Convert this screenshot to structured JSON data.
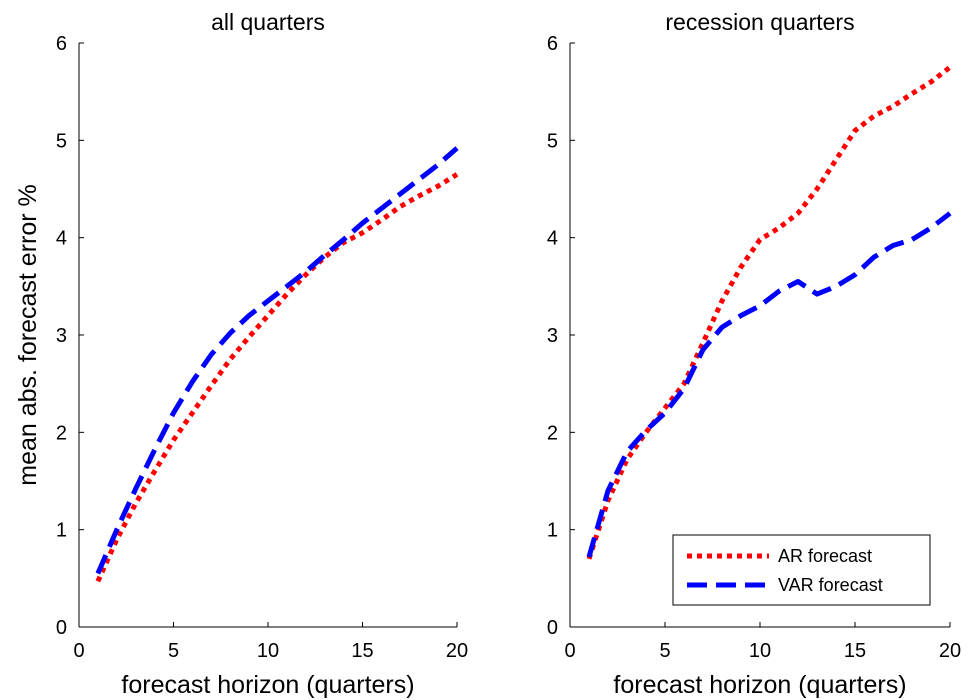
{
  "chart_data": [
    {
      "type": "line",
      "title": "all quarters",
      "xlabel": "forecast horizon (quarters)",
      "ylabel": "mean abs. forecast error %",
      "xlim": [
        0,
        20
      ],
      "ylim": [
        0,
        6
      ],
      "xticks": [
        0,
        5,
        10,
        15,
        20
      ],
      "yticks": [
        0,
        1,
        2,
        3,
        4,
        5,
        6
      ],
      "grid": false,
      "series": [
        {
          "name": "AR forecast",
          "color": "#ff0000",
          "style": "dotted",
          "x": [
            1,
            2,
            3,
            4,
            5,
            6,
            7,
            8,
            9,
            10,
            11,
            12,
            13,
            14,
            15,
            16,
            17,
            18,
            19,
            20
          ],
          "y": [
            0.47,
            0.9,
            1.27,
            1.6,
            1.92,
            2.2,
            2.48,
            2.75,
            2.98,
            3.2,
            3.42,
            3.62,
            3.8,
            3.95,
            4.05,
            4.18,
            4.32,
            4.43,
            4.53,
            4.65
          ]
        },
        {
          "name": "VAR forecast",
          "color": "#0000ff",
          "style": "dashed",
          "x": [
            1,
            2,
            3,
            4,
            5,
            6,
            7,
            8,
            9,
            10,
            11,
            12,
            13,
            14,
            15,
            16,
            17,
            18,
            19,
            20
          ],
          "y": [
            0.55,
            1.0,
            1.42,
            1.82,
            2.2,
            2.52,
            2.8,
            3.02,
            3.2,
            3.35,
            3.5,
            3.65,
            3.82,
            3.98,
            4.15,
            4.3,
            4.45,
            4.6,
            4.75,
            4.92
          ]
        }
      ]
    },
    {
      "type": "line",
      "title": "recession quarters",
      "xlabel": "forecast horizon (quarters)",
      "ylabel": "",
      "xlim": [
        0,
        20
      ],
      "ylim": [
        0,
        6
      ],
      "xticks": [
        0,
        5,
        10,
        15,
        20
      ],
      "yticks": [
        0,
        1,
        2,
        3,
        4,
        5,
        6
      ],
      "grid": false,
      "legend": {
        "position": "bottom-right",
        "entries": [
          "AR forecast",
          "VAR forecast"
        ]
      },
      "series": [
        {
          "name": "AR forecast",
          "color": "#ff0000",
          "style": "dotted",
          "x": [
            1,
            2,
            3,
            4,
            5,
            6,
            7,
            8,
            9,
            10,
            11,
            12,
            13,
            14,
            15,
            16,
            17,
            18,
            19,
            20
          ],
          "y": [
            0.7,
            1.3,
            1.72,
            2.0,
            2.25,
            2.5,
            2.92,
            3.35,
            3.7,
            3.98,
            4.1,
            4.25,
            4.5,
            4.8,
            5.1,
            5.25,
            5.35,
            5.48,
            5.6,
            5.75
          ]
        },
        {
          "name": "VAR forecast",
          "color": "#0000ff",
          "style": "dashed",
          "x": [
            1,
            2,
            3,
            4,
            5,
            6,
            7,
            8,
            9,
            10,
            11,
            12,
            13,
            14,
            15,
            16,
            17,
            18,
            19,
            20
          ],
          "y": [
            0.72,
            1.4,
            1.8,
            2.02,
            2.2,
            2.45,
            2.85,
            3.08,
            3.2,
            3.3,
            3.45,
            3.55,
            3.42,
            3.5,
            3.62,
            3.8,
            3.92,
            3.98,
            4.1,
            4.25
          ]
        }
      ]
    }
  ]
}
